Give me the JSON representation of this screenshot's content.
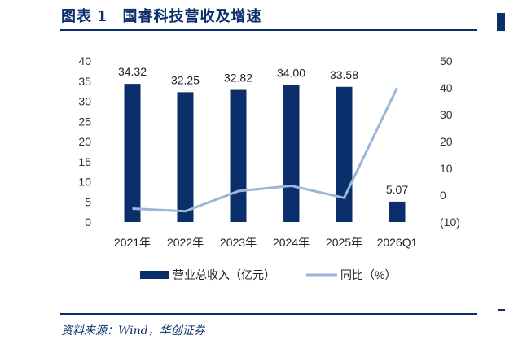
{
  "header": {
    "label": "图表",
    "number": "1",
    "title": "国睿科技营收及增速"
  },
  "source": "资料来源：Wind，华创证券",
  "chart_data": {
    "type": "bar",
    "categories": [
      "2021年",
      "2022年",
      "2023年",
      "2024年",
      "2025年",
      "2026Q1"
    ],
    "series": [
      {
        "name": "营业总收入（亿元）",
        "type": "bar",
        "axis": "left",
        "values": [
          34.32,
          32.25,
          32.82,
          34.0,
          33.58,
          5.07
        ],
        "labels": [
          "34.32",
          "32.25",
          "32.82",
          "34.00",
          "33.58",
          "5.07"
        ],
        "color": "#0b2f6b"
      },
      {
        "name": "同比（%）",
        "type": "line",
        "axis": "right",
        "values": [
          -5,
          -6,
          1.5,
          3.5,
          -1,
          40
        ],
        "color": "#9ab6d9"
      }
    ],
    "y_left": {
      "lim": [
        0,
        40
      ],
      "ticks": [
        "0",
        "5",
        "10",
        "15",
        "20",
        "25",
        "30",
        "35",
        "40"
      ]
    },
    "y_right": {
      "lim": [
        -10,
        50
      ],
      "ticks": [
        "(10)",
        "0",
        "10",
        "20",
        "30",
        "40",
        "50"
      ],
      "negative_color": "#e60000"
    },
    "grid": false,
    "legend": "bottom"
  }
}
